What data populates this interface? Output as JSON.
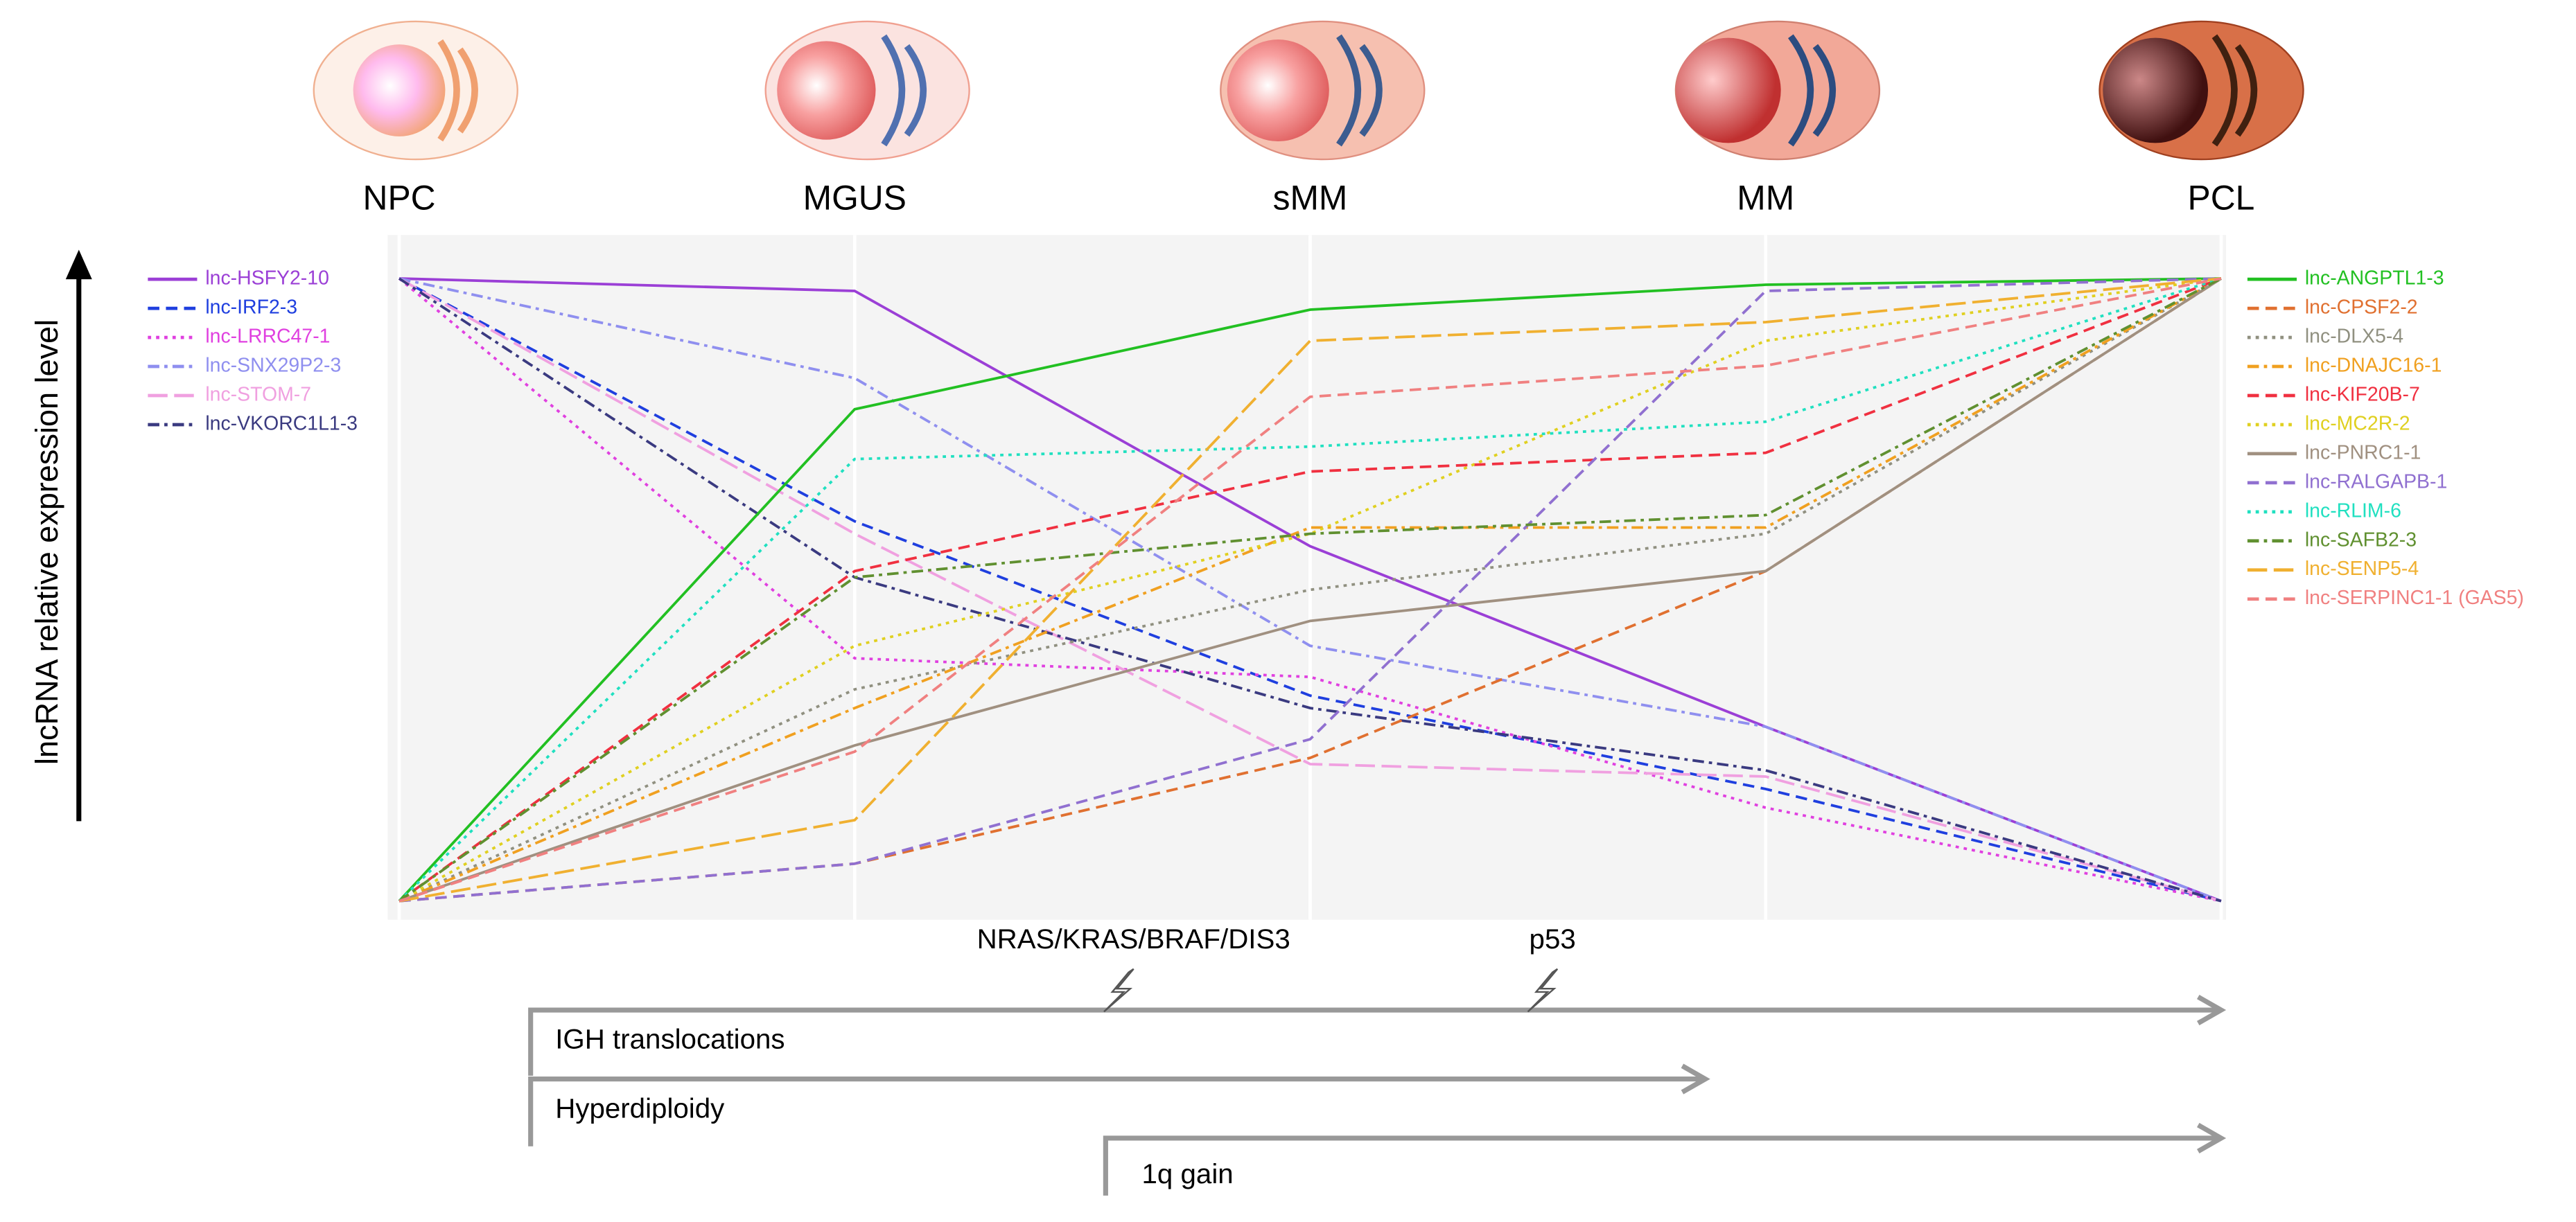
{
  "chart_data": {
    "type": "line",
    "ylabel": "lncRNA relative expression level",
    "categories": [
      "NPC",
      "MGUS",
      "sMM",
      "MM",
      "PCL"
    ],
    "ylim": [
      -0.03,
      1.07
    ],
    "series": [
      {
        "name": "lnc-HSFY2-10",
        "color": "#9b3fd6",
        "dash": "solid",
        "legend": "left",
        "values": [
          1,
          0.98,
          0.57,
          0.28,
          0
        ]
      },
      {
        "name": "lnc-IRF2-3",
        "color": "#1f3fdf",
        "dash": "dashed",
        "legend": "left",
        "values": [
          1,
          0.61,
          0.33,
          0.18,
          0
        ]
      },
      {
        "name": "lnc-LRRC47-1",
        "color": "#e040e0",
        "dash": "dotted",
        "legend": "left",
        "values": [
          1,
          0.39,
          0.36,
          0.15,
          0
        ]
      },
      {
        "name": "lnc-SNX29P2-3",
        "color": "#8f8fef",
        "dash": "dashdot",
        "legend": "left",
        "values": [
          1,
          0.84,
          0.41,
          0.28,
          0
        ]
      },
      {
        "name": "lnc-STOM-7",
        "color": "#f0a0e0",
        "dash": "longdash",
        "legend": "left",
        "values": [
          1,
          0.59,
          0.22,
          0.2,
          0
        ]
      },
      {
        "name": "lnc-VKORC1L1-3",
        "color": "#3a3a80",
        "dash": "dashdot",
        "legend": "left",
        "values": [
          1,
          0.52,
          0.31,
          0.21,
          0
        ]
      },
      {
        "name": "lnc-ANGPTL1-3",
        "color": "#22c022",
        "dash": "solid",
        "legend": "right",
        "values": [
          0,
          0.79,
          0.95,
          0.99,
          1
        ]
      },
      {
        "name": "lnc-CPSF2-2",
        "color": "#e07030",
        "dash": "dashed",
        "legend": "right",
        "values": [
          0,
          0.06,
          0.23,
          0.53,
          1
        ]
      },
      {
        "name": "lnc-DLX5-4",
        "color": "#909080",
        "dash": "dotted",
        "legend": "right",
        "values": [
          0,
          0.34,
          0.5,
          0.59,
          1
        ]
      },
      {
        "name": "lnc-DNAJC16-1",
        "color": "#f0a020",
        "dash": "dashdot",
        "legend": "right",
        "values": [
          0,
          0.31,
          0.6,
          0.6,
          1
        ]
      },
      {
        "name": "lnc-KIF20B-7",
        "color": "#f03040",
        "dash": "dashed",
        "legend": "right",
        "values": [
          0,
          0.53,
          0.69,
          0.72,
          1
        ]
      },
      {
        "name": "lnc-MC2R-2",
        "color": "#e0d020",
        "dash": "dotted",
        "legend": "right",
        "values": [
          0,
          0.41,
          0.59,
          0.9,
          1
        ]
      },
      {
        "name": "lnc-PNRC1-1",
        "color": "#a09080",
        "dash": "solid",
        "legend": "right",
        "values": [
          0,
          0.25,
          0.45,
          0.53,
          1
        ]
      },
      {
        "name": "lnc-RALGAPB-1",
        "color": "#9070d0",
        "dash": "dashed",
        "legend": "right",
        "values": [
          0,
          0.06,
          0.26,
          0.98,
          1
        ]
      },
      {
        "name": "lnc-RLIM-6",
        "color": "#20e0c0",
        "dash": "dotted",
        "legend": "right",
        "values": [
          0,
          0.71,
          0.73,
          0.77,
          1
        ]
      },
      {
        "name": "lnc-SAFB2-3",
        "color": "#609030",
        "dash": "dashdot",
        "legend": "right",
        "values": [
          0,
          0.52,
          0.59,
          0.62,
          1
        ]
      },
      {
        "name": "lnc-SENP5-4",
        "color": "#f0b030",
        "dash": "longdash",
        "legend": "right",
        "values": [
          0,
          0.13,
          0.9,
          0.93,
          1
        ]
      },
      {
        "name": "lnc-SERPINC1-1 (GAS5)",
        "color": "#f08080",
        "dash": "dashed",
        "legend": "right",
        "values": [
          0,
          0.24,
          0.81,
          0.86,
          1
        ]
      }
    ],
    "annotations": [
      "NRAS/KRAS/BRAF/DIS3",
      "p53",
      "IGH translocations",
      "Hyperdiploidy",
      "1q gain"
    ]
  }
}
